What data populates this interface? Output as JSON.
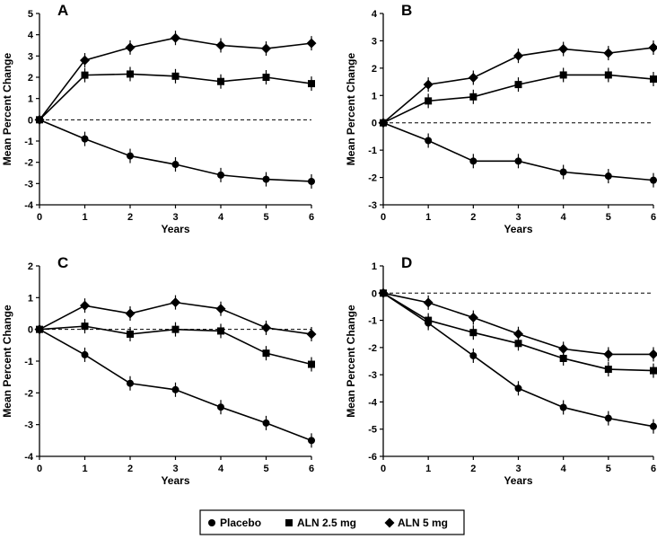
{
  "chart_data": [
    {
      "type": "line",
      "panel": "A",
      "xlabel": "Years",
      "ylabel": "Mean Percent Change",
      "x": [
        0,
        1,
        2,
        3,
        4,
        5,
        6
      ],
      "ylim": [
        -4,
        5
      ],
      "yticks": [
        -4,
        -3,
        -2,
        -1,
        0,
        1,
        2,
        3,
        4,
        5
      ],
      "series": [
        {
          "name": "Placebo",
          "marker": "circle",
          "values": [
            0,
            -0.9,
            -1.7,
            -2.1,
            -2.6,
            -2.8,
            -2.9
          ]
        },
        {
          "name": "ALN 2.5 mg",
          "marker": "square",
          "values": [
            0,
            2.1,
            2.15,
            2.05,
            1.8,
            2.0,
            1.7
          ]
        },
        {
          "name": "ALN 5 mg",
          "marker": "diamond",
          "values": [
            0,
            2.8,
            3.4,
            3.85,
            3.5,
            3.35,
            3.6
          ]
        }
      ]
    },
    {
      "type": "line",
      "panel": "B",
      "xlabel": "Years",
      "ylabel": "Mean Percent Change",
      "x": [
        0,
        1,
        2,
        3,
        4,
        5,
        6
      ],
      "ylim": [
        -3,
        4
      ],
      "yticks": [
        -3,
        -2,
        -1,
        0,
        1,
        2,
        3,
        4
      ],
      "series": [
        {
          "name": "Placebo",
          "marker": "circle",
          "values": [
            0,
            -0.65,
            -1.4,
            -1.4,
            -1.8,
            -1.95,
            -2.1
          ]
        },
        {
          "name": "ALN 2.5 mg",
          "marker": "square",
          "values": [
            0,
            0.8,
            0.95,
            1.4,
            1.75,
            1.75,
            1.6
          ]
        },
        {
          "name": "ALN 5 mg",
          "marker": "diamond",
          "values": [
            0,
            1.4,
            1.65,
            2.45,
            2.7,
            2.55,
            2.75
          ]
        }
      ]
    },
    {
      "type": "line",
      "panel": "C",
      "xlabel": "Years",
      "ylabel": "Mean Percent Change",
      "x": [
        0,
        1,
        2,
        3,
        4,
        5,
        6
      ],
      "ylim": [
        -4,
        2
      ],
      "yticks": [
        -4,
        -3,
        -2,
        -1,
        0,
        1,
        2
      ],
      "series": [
        {
          "name": "Placebo",
          "marker": "circle",
          "values": [
            0,
            -0.8,
            -1.7,
            -1.9,
            -2.45,
            -2.95,
            -3.5
          ]
        },
        {
          "name": "ALN 2.5 mg",
          "marker": "square",
          "values": [
            0,
            0.1,
            -0.15,
            0.0,
            -0.05,
            -0.75,
            -1.1
          ]
        },
        {
          "name": "ALN 5 mg",
          "marker": "diamond",
          "values": [
            0,
            0.75,
            0.5,
            0.85,
            0.65,
            0.05,
            -0.15
          ]
        }
      ]
    },
    {
      "type": "line",
      "panel": "D",
      "xlabel": "Years",
      "ylabel": "Mean Percent Change",
      "x": [
        0,
        1,
        2,
        3,
        4,
        5,
        6
      ],
      "ylim": [
        -6,
        1
      ],
      "yticks": [
        -6,
        -5,
        -4,
        -3,
        -2,
        -1,
        0,
        1
      ],
      "series": [
        {
          "name": "Placebo",
          "marker": "circle",
          "values": [
            0,
            -1.1,
            -2.3,
            -3.5,
            -4.2,
            -4.6,
            -4.9
          ]
        },
        {
          "name": "ALN 2.5 mg",
          "marker": "square",
          "values": [
            0,
            -1.0,
            -1.45,
            -1.85,
            -2.4,
            -2.8,
            -2.85
          ]
        },
        {
          "name": "ALN 5 mg",
          "marker": "diamond",
          "values": [
            0,
            -0.35,
            -0.9,
            -1.5,
            -2.05,
            -2.25,
            -2.25
          ]
        }
      ]
    }
  ],
  "legend": {
    "placement": "bottom-center",
    "items": [
      {
        "label": "Placebo",
        "marker": "circle"
      },
      {
        "label": "ALN 2.5 mg",
        "marker": "square"
      },
      {
        "label": "ALN 5 mg",
        "marker": "diamond"
      }
    ]
  },
  "style": {
    "line_color": "#000000",
    "background": "#ffffff",
    "zero_line": "dashed"
  }
}
